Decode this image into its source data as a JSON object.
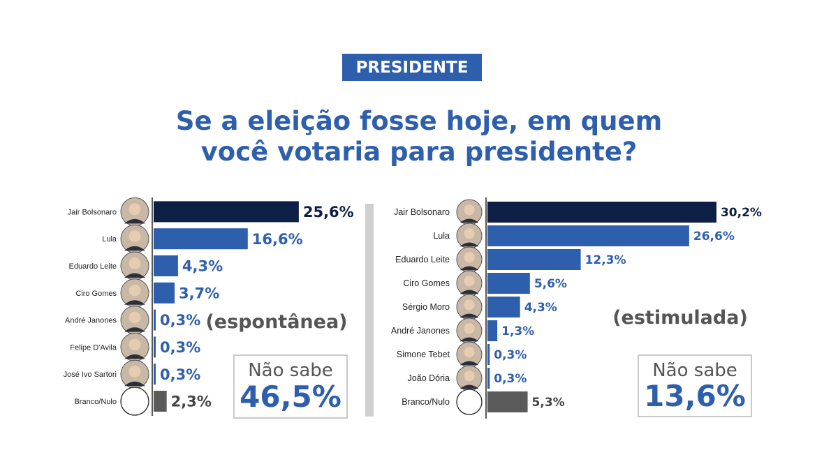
{
  "badge": "PRESIDENTE",
  "title": {
    "line1": "Se a eleição fosse hoje, em quem",
    "line2": "você votaria para presidente?"
  },
  "colors": {
    "accent": "#2e5fad",
    "leader": "#0d1f45",
    "neutral": "#5a5a5a",
    "divider": "#d0d0d0"
  },
  "chart_data": [
    {
      "type": "bar",
      "orientation": "horizontal",
      "subtitle": "(espontânea)",
      "categories": [
        "Jair Bolsonaro",
        "Lula",
        "Eduardo Leite",
        "Ciro Gomes",
        "André Janones",
        "Felipe D'Avila",
        "José Ivo Sartori",
        "Branco/Nulo"
      ],
      "values": [
        25.6,
        16.6,
        4.3,
        3.7,
        0.3,
        0.3,
        0.3,
        2.3
      ],
      "value_labels": [
        "25,6%",
        "16,6%",
        "4,3%",
        "3,7%",
        "0,3%",
        "0,3%",
        "0,3%",
        "2,3%"
      ],
      "bar_colors": [
        "#0d1f45",
        "#2e5fad",
        "#2e5fad",
        "#2e5fad",
        "#2e5fad",
        "#2e5fad",
        "#2e5fad",
        "#5a5a5a"
      ],
      "nao_sabe": {
        "label": "Não sabe",
        "value": "46,5%"
      }
    },
    {
      "type": "bar",
      "orientation": "horizontal",
      "subtitle": "(estimulada)",
      "categories": [
        "Jair Bolsonaro",
        "Lula",
        "Eduardo Leite",
        "Ciro Gomes",
        "Sérgio Moro",
        "André Janones",
        "Simone Tebet",
        "João Dória",
        "Branco/Nulo"
      ],
      "values": [
        30.2,
        26.6,
        12.3,
        5.6,
        4.3,
        1.3,
        0.3,
        0.3,
        5.3
      ],
      "value_labels": [
        "30,2%",
        "26,6%",
        "12,3%",
        "5,6%",
        "4,3%",
        "1,3%",
        "0,3%",
        "0,3%",
        "5,3%"
      ],
      "bar_colors": [
        "#0d1f45",
        "#2e5fad",
        "#2e5fad",
        "#2e5fad",
        "#2e5fad",
        "#2e5fad",
        "#2e5fad",
        "#2e5fad",
        "#5a5a5a"
      ],
      "nao_sabe": {
        "label": "Não sabe",
        "value": "13,6%"
      }
    }
  ]
}
